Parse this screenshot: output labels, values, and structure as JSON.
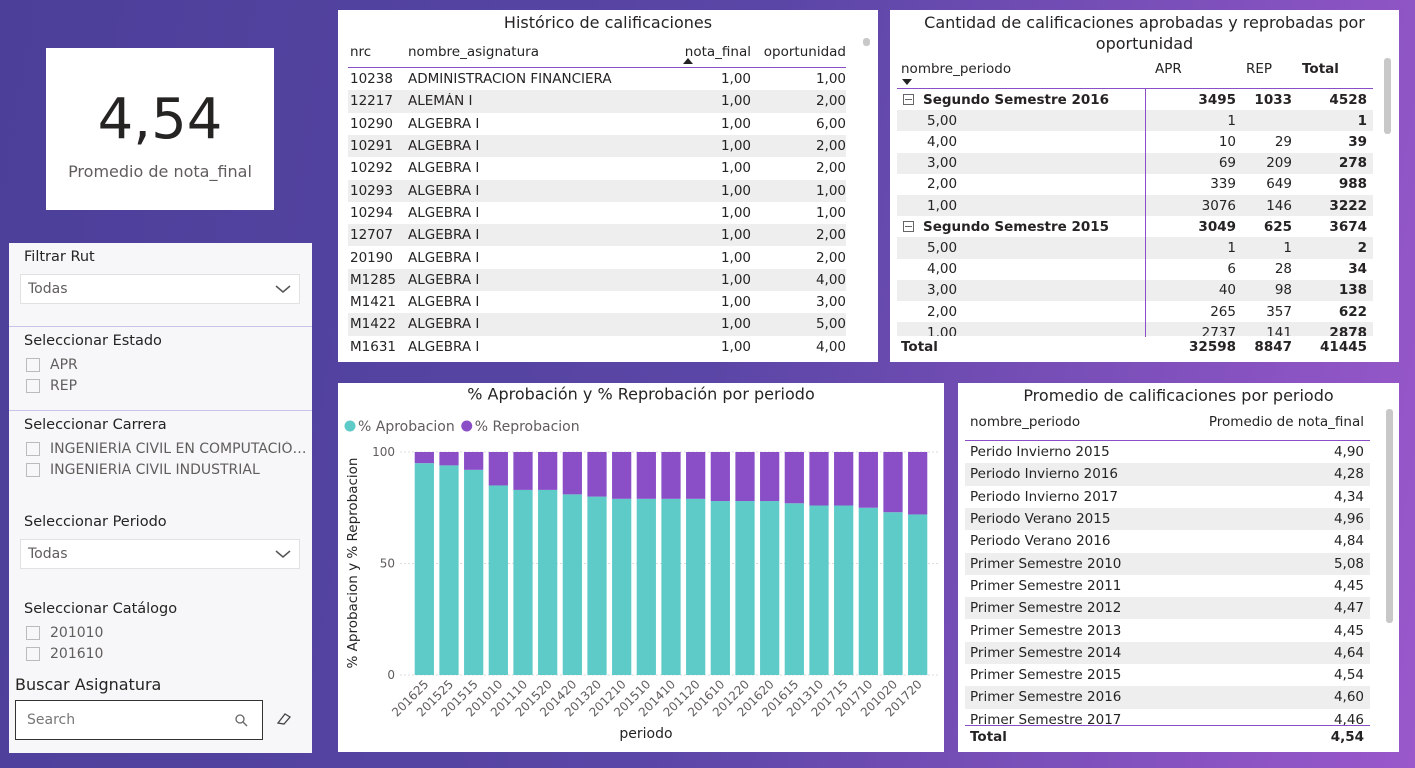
{
  "kpi": {
    "value": "4,54",
    "label": "Promedio de nota_final"
  },
  "filters": {
    "rut": {
      "label": "Filtrar Rut",
      "selected": "Todas"
    },
    "estado": {
      "label": "Seleccionar Estado",
      "options": [
        "APR",
        "REP"
      ]
    },
    "carrera": {
      "label": "Seleccionar Carrera",
      "options": [
        "INGENIERÍA CIVIL EN COMPUTACIÓN...",
        "INGENIERÍA CIVIL INDUSTRIAL"
      ]
    },
    "periodo": {
      "label": "Seleccionar Periodo",
      "selected": "Todas"
    },
    "catalogo": {
      "label": "Seleccionar Catálogo",
      "options": [
        "201010",
        "201610"
      ]
    },
    "search": {
      "label": "Buscar Asignatura",
      "placeholder": "Search"
    }
  },
  "historico": {
    "title": "Histórico de calificaciones",
    "columns": [
      "nrc",
      "nombre_asignatura",
      "nota_final",
      "oportunidad"
    ],
    "rows": [
      [
        "10238",
        "ADMINISTRACION FINANCIERA",
        "1,00",
        "1,00"
      ],
      [
        "12217",
        "ALEMÁN I",
        "1,00",
        "2,00"
      ],
      [
        "10290",
        "ALGEBRA I",
        "1,00",
        "6,00"
      ],
      [
        "10291",
        "ALGEBRA I",
        "1,00",
        "2,00"
      ],
      [
        "10292",
        "ALGEBRA I",
        "1,00",
        "2,00"
      ],
      [
        "10293",
        "ALGEBRA I",
        "1,00",
        "1,00"
      ],
      [
        "10294",
        "ALGEBRA I",
        "1,00",
        "1,00"
      ],
      [
        "12707",
        "ALGEBRA I",
        "1,00",
        "2,00"
      ],
      [
        "20190",
        "ALGEBRA I",
        "1,00",
        "2,00"
      ],
      [
        "M1285",
        "ALGEBRA I",
        "1,00",
        "4,00"
      ],
      [
        "M1421",
        "ALGEBRA I",
        "1,00",
        "3,00"
      ],
      [
        "M1422",
        "ALGEBRA I",
        "1,00",
        "5,00"
      ],
      [
        "M1631",
        "ALGEBRA I",
        "1,00",
        "4,00"
      ]
    ]
  },
  "matrix": {
    "title": "Cantidad de calificaciones aprobadas y reprobadas por oportunidad",
    "columns": [
      "nombre_periodo",
      "APR",
      "REP",
      "Total"
    ],
    "rows": [
      {
        "label": "Segundo Semestre 2016",
        "values": [
          3495,
          1033,
          4528
        ],
        "group": true
      },
      {
        "label": "5,00",
        "values": [
          1,
          null,
          1
        ]
      },
      {
        "label": "4,00",
        "values": [
          10,
          29,
          39
        ]
      },
      {
        "label": "3,00",
        "values": [
          69,
          209,
          278
        ]
      },
      {
        "label": "2,00",
        "values": [
          339,
          649,
          988
        ]
      },
      {
        "label": "1,00",
        "values": [
          3076,
          146,
          3222
        ]
      },
      {
        "label": "Segundo Semestre 2015",
        "values": [
          3049,
          625,
          3674
        ],
        "group": true
      },
      {
        "label": "5,00",
        "values": [
          1,
          1,
          2
        ]
      },
      {
        "label": "4,00",
        "values": [
          6,
          28,
          34
        ]
      },
      {
        "label": "3,00",
        "values": [
          40,
          98,
          138
        ]
      },
      {
        "label": "2,00",
        "values": [
          265,
          357,
          622
        ]
      },
      {
        "label": "1,00",
        "values": [
          2737,
          141,
          2878
        ]
      }
    ],
    "total": {
      "label": "Total",
      "values": [
        32598,
        8847,
        41445
      ]
    }
  },
  "chart_data": {
    "type": "stacked_bar",
    "title": "% Aprobación y % Reprobación por periodo",
    "xlabel": "periodo",
    "ylabel": "% Aprobacion y % Reprobacion",
    "categories": [
      "201625",
      "201525",
      "201515",
      "201010",
      "201110",
      "201520",
      "201420",
      "201320",
      "201210",
      "201510",
      "201410",
      "201120",
      "201610",
      "201220",
      "201620",
      "201615",
      "201310",
      "201715",
      "201710",
      "201020",
      "201720"
    ],
    "series": [
      {
        "name": "% Aprobacion",
        "color": "#5ecbc8",
        "values": [
          95,
          94,
          92,
          85,
          83,
          83,
          81,
          80,
          79,
          79,
          79,
          79,
          78,
          78,
          78,
          77,
          76,
          76,
          75,
          73,
          72
        ]
      },
      {
        "name": "% Reprobacion",
        "color": "#8a4fc7",
        "values": [
          5,
          6,
          8,
          15,
          17,
          17,
          19,
          20,
          21,
          21,
          21,
          21,
          22,
          22,
          22,
          23,
          24,
          24,
          25,
          27,
          28
        ]
      }
    ],
    "ylim": [
      0,
      100
    ],
    "yticks": [
      0,
      50,
      100
    ],
    "grid": true
  },
  "promedio": {
    "title": "Promedio de calificaciones por periodo",
    "columns": [
      "nombre_periodo",
      "Promedio de nota_final"
    ],
    "rows": [
      [
        "Perido Invierno 2015",
        "4,90"
      ],
      [
        "Periodo Invierno 2016",
        "4,28"
      ],
      [
        "Periodo Invierno 2017",
        "4,34"
      ],
      [
        "Periodo Verano 2015",
        "4,96"
      ],
      [
        "Periodo Verano 2016",
        "4,84"
      ],
      [
        "Primer Semestre 2010",
        "5,08"
      ],
      [
        "Primer Semestre 2011",
        "4,45"
      ],
      [
        "Primer Semestre 2012",
        "4,47"
      ],
      [
        "Primer Semestre 2013",
        "4,45"
      ],
      [
        "Primer Semestre 2014",
        "4,64"
      ],
      [
        "Primer Semestre 2015",
        "4,54"
      ],
      [
        "Primer Semestre 2016",
        "4,60"
      ],
      [
        "Primer Semestre 2017",
        "4,46"
      ]
    ],
    "total": {
      "label": "Total",
      "value": "4,54"
    }
  }
}
